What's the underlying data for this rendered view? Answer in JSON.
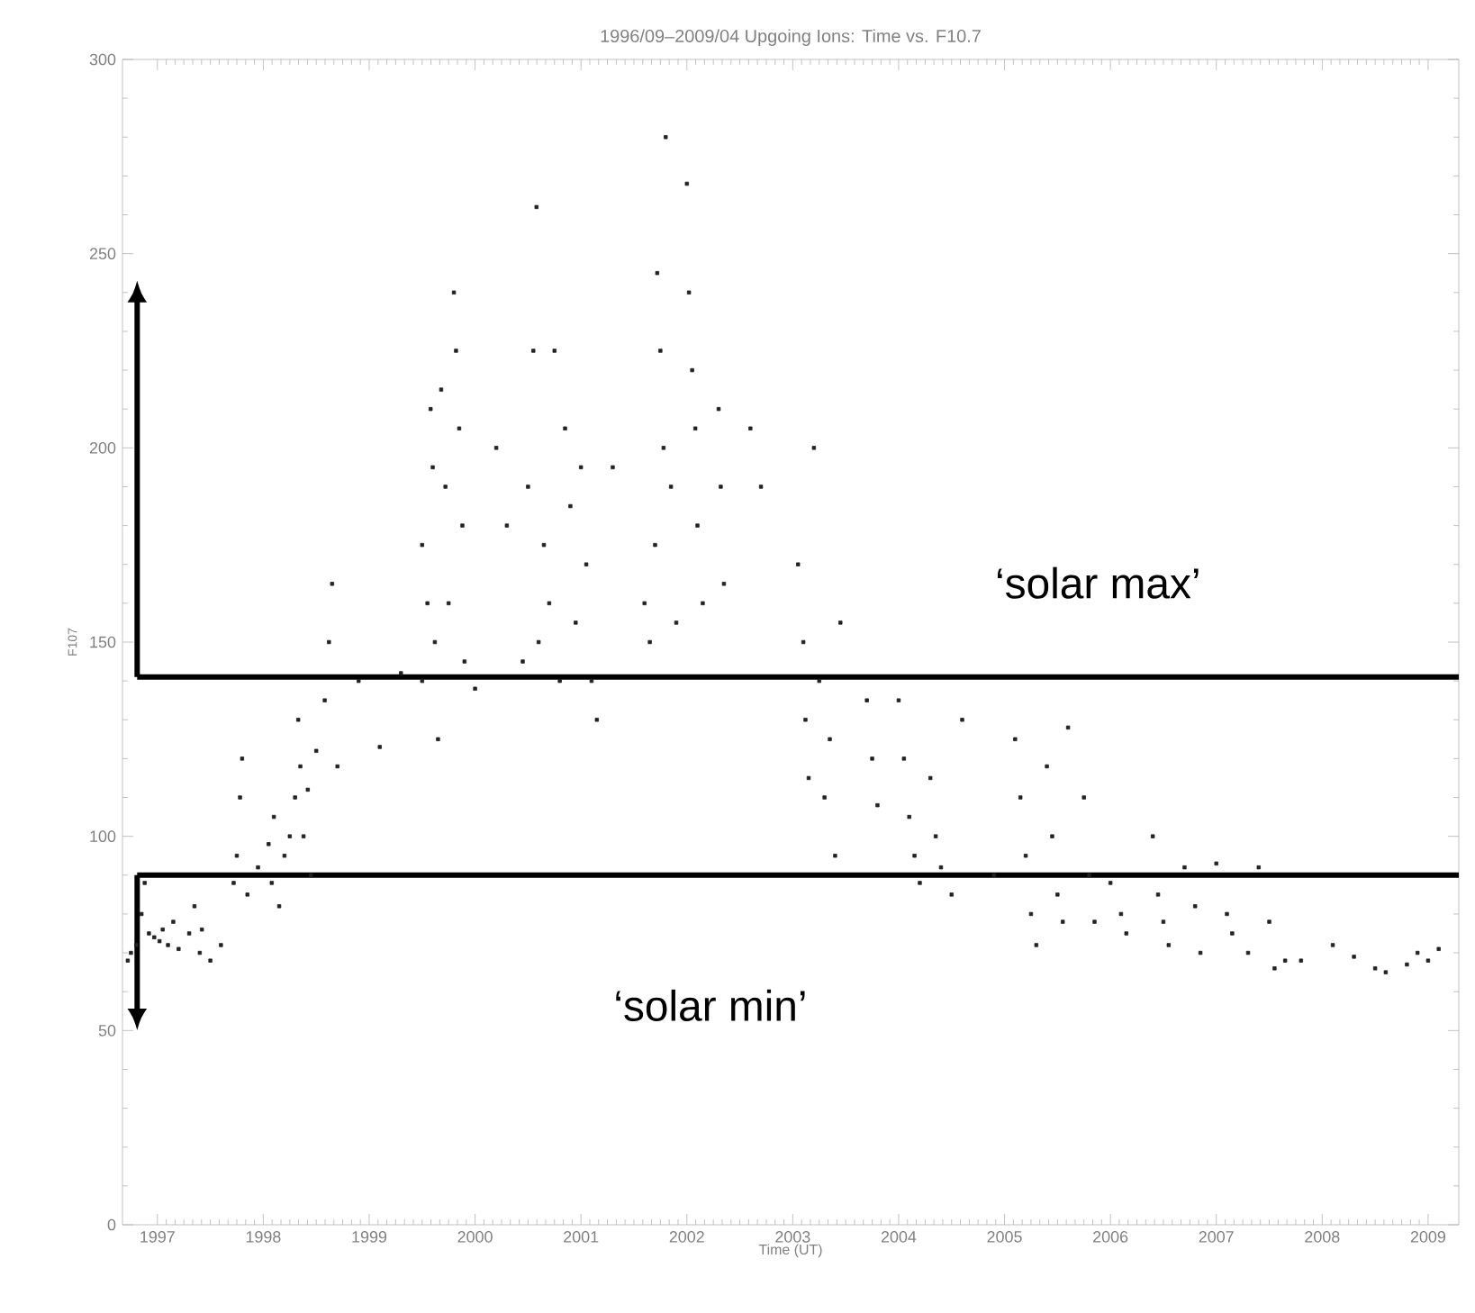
{
  "chart_data": {
    "type": "scatter",
    "title": "1996/09–2009/04 Upgoing Ions: Time vs. F10.7",
    "xlabel": "Time (UT)",
    "ylabel": "F107",
    "xlim": [
      1996.67,
      2009.29
    ],
    "ylim": [
      0,
      300
    ],
    "xticks": [
      {
        "value": 1997,
        "label": "1997"
      },
      {
        "value": 1998,
        "label": "1998"
      },
      {
        "value": 1999,
        "label": "1999"
      },
      {
        "value": 2000,
        "label": "2000"
      },
      {
        "value": 2001,
        "label": "2001"
      },
      {
        "value": 2002,
        "label": "2002"
      },
      {
        "value": 2003,
        "label": "2003"
      },
      {
        "value": 2004,
        "label": "2004"
      },
      {
        "value": 2005,
        "label": "2005"
      },
      {
        "value": 2006,
        "label": "2006"
      },
      {
        "value": 2007,
        "label": "2007"
      },
      {
        "value": 2008,
        "label": "2008"
      },
      {
        "value": 2009,
        "label": "2009"
      }
    ],
    "yticks": [
      0,
      50,
      100,
      150,
      200,
      250,
      300
    ],
    "marker": "square",
    "ref_lines": [
      {
        "axis": "y",
        "value": 141,
        "label": "‘solar max’",
        "color": "#000000"
      },
      {
        "axis": "y",
        "value": 90,
        "label": "‘solar min’",
        "color": "#000000"
      }
    ],
    "series": [
      {
        "color": "#222222",
        "x": [
          1996.72,
          1996.75,
          1996.8,
          1996.85,
          1996.88,
          1996.92,
          1996.97,
          1997.02,
          1997.05,
          1997.1,
          1997.15,
          1997.2,
          1997.3,
          1997.35,
          1997.4,
          1997.42,
          1997.5,
          1997.6,
          1997.72,
          1997.75,
          1997.78,
          1997.8,
          1997.85,
          1997.95,
          1998.05,
          1998.08,
          1998.1,
          1998.15,
          1998.2,
          1998.25,
          1998.3,
          1998.33,
          1998.35,
          1998.38,
          1998.42,
          1998.45,
          1998.5,
          1998.58,
          1998.62,
          1998.65,
          1998.7,
          1998.9,
          1999.1,
          1999.3,
          1999.5,
          1999.5,
          1999.55,
          1999.58,
          1999.6,
          1999.62,
          1999.65,
          1999.68,
          1999.72,
          1999.75,
          1999.8,
          1999.82,
          1999.85,
          1999.88,
          1999.9,
          2000.0,
          2000.2,
          2000.3,
          2000.45,
          2000.5,
          2000.55,
          2000.58,
          2000.6,
          2000.65,
          2000.7,
          2000.75,
          2000.8,
          2000.85,
          2000.9,
          2000.95,
          2001.0,
          2001.05,
          2001.1,
          2001.15,
          2001.3,
          2001.6,
          2001.65,
          2001.7,
          2001.72,
          2001.75,
          2001.78,
          2001.8,
          2001.85,
          2001.9,
          2002.0,
          2002.02,
          2002.05,
          2002.08,
          2002.1,
          2002.15,
          2002.3,
          2002.32,
          2002.35,
          2002.6,
          2002.7,
          2003.05,
          2003.1,
          2003.12,
          2003.15,
          2003.2,
          2003.25,
          2003.3,
          2003.35,
          2003.4,
          2003.45,
          2003.7,
          2003.75,
          2003.8,
          2004.0,
          2004.05,
          2004.1,
          2004.15,
          2004.2,
          2004.3,
          2004.35,
          2004.4,
          2004.5,
          2004.6,
          2004.9,
          2005.1,
          2005.15,
          2005.2,
          2005.25,
          2005.3,
          2005.4,
          2005.45,
          2005.5,
          2005.55,
          2005.6,
          2005.75,
          2005.8,
          2005.85,
          2006.0,
          2006.1,
          2006.15,
          2006.4,
          2006.45,
          2006.5,
          2006.55,
          2006.7,
          2006.8,
          2006.85,
          2007.0,
          2007.1,
          2007.15,
          2007.3,
          2007.4,
          2007.5,
          2007.55,
          2007.65,
          2007.8,
          2008.1,
          2008.3,
          2008.5,
          2008.6,
          2008.8,
          2008.9,
          2009.0,
          2009.1
        ],
        "values": [
          68,
          70,
          72,
          80,
          88,
          75,
          74,
          73,
          76,
          72,
          78,
          71,
          75,
          82,
          70,
          76,
          68,
          72,
          88,
          95,
          110,
          120,
          85,
          92,
          98,
          88,
          105,
          82,
          95,
          100,
          110,
          130,
          118,
          100,
          112,
          90,
          122,
          135,
          150,
          165,
          118,
          140,
          123,
          142,
          175,
          140,
          160,
          210,
          195,
          150,
          125,
          215,
          190,
          160,
          240,
          225,
          205,
          180,
          145,
          138,
          200,
          180,
          145,
          190,
          225,
          262,
          150,
          175,
          160,
          225,
          140,
          205,
          185,
          155,
          195,
          170,
          140,
          130,
          195,
          160,
          150,
          175,
          245,
          225,
          200,
          280,
          190,
          155,
          268,
          240,
          220,
          205,
          180,
          160,
          210,
          190,
          165,
          205,
          190,
          170,
          150,
          130,
          115,
          200,
          140,
          110,
          125,
          95,
          155,
          135,
          120,
          108,
          135,
          120,
          105,
          95,
          88,
          115,
          100,
          92,
          85,
          130,
          90,
          125,
          110,
          95,
          80,
          72,
          118,
          100,
          85,
          78,
          128,
          110,
          90,
          78,
          88,
          80,
          75,
          100,
          85,
          78,
          72,
          92,
          82,
          70,
          93,
          80,
          75,
          70,
          92,
          78,
          66,
          68,
          68,
          72,
          69,
          66,
          65,
          67,
          70,
          68,
          71
        ]
      }
    ]
  }
}
